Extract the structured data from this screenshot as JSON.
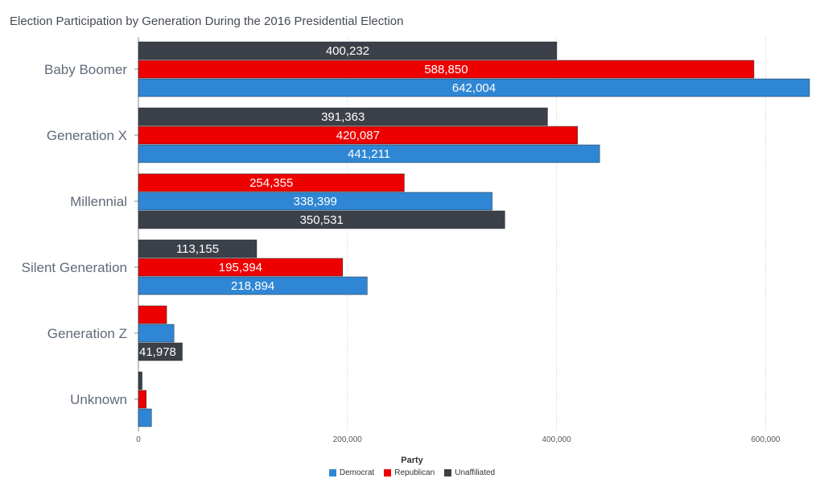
{
  "chart_data": {
    "type": "bar",
    "orientation": "horizontal",
    "title": "Election Participation by Generation During the 2016 Presidential Election",
    "legend_title": "Party",
    "legend_position": "bottom",
    "grid": true,
    "xlim": [
      0,
      650000
    ],
    "x_ticks": [
      0,
      200000,
      400000,
      600000
    ],
    "x_tick_labels": [
      "0",
      "200,000",
      "400,000",
      "600,000"
    ],
    "series_styles": [
      {
        "name": "Democrat",
        "color": "#2f86d4"
      },
      {
        "name": "Republican",
        "color": "#ee0000"
      },
      {
        "name": "Unaffiliated",
        "color": "#3b4049"
      }
    ],
    "groups": [
      {
        "category": "Baby Boomer",
        "bars": [
          {
            "series": "Unaffiliated",
            "value": 400232,
            "label": "400,232"
          },
          {
            "series": "Republican",
            "value": 588850,
            "label": "588,850"
          },
          {
            "series": "Democrat",
            "value": 642004,
            "label": "642,004"
          }
        ]
      },
      {
        "category": "Generation X",
        "bars": [
          {
            "series": "Unaffiliated",
            "value": 391363,
            "label": "391,363"
          },
          {
            "series": "Republican",
            "value": 420087,
            "label": "420,087"
          },
          {
            "series": "Democrat",
            "value": 441211,
            "label": "441,211"
          }
        ]
      },
      {
        "category": "Millennial",
        "bars": [
          {
            "series": "Republican",
            "value": 254355,
            "label": "254,355"
          },
          {
            "series": "Democrat",
            "value": 338399,
            "label": "338,399"
          },
          {
            "series": "Unaffiliated",
            "value": 350531,
            "label": "350,531"
          }
        ]
      },
      {
        "category": "Silent Generation",
        "bars": [
          {
            "series": "Unaffiliated",
            "value": 113155,
            "label": "113,155"
          },
          {
            "series": "Republican",
            "value": 195394,
            "label": "195,394"
          },
          {
            "series": "Democrat",
            "value": 218894,
            "label": "218,894"
          }
        ]
      },
      {
        "category": "Generation Z",
        "bars": [
          {
            "series": "Republican",
            "value": 27000,
            "label": ""
          },
          {
            "series": "Democrat",
            "value": 34000,
            "label": ""
          },
          {
            "series": "Unaffiliated",
            "value": 41978,
            "label": "41,978"
          }
        ]
      },
      {
        "category": "Unknown",
        "bars": [
          {
            "series": "Unaffiliated",
            "value": 3500,
            "label": ""
          },
          {
            "series": "Republican",
            "value": 7500,
            "label": ""
          },
          {
            "series": "Democrat",
            "value": 12500,
            "label": ""
          }
        ]
      }
    ]
  }
}
